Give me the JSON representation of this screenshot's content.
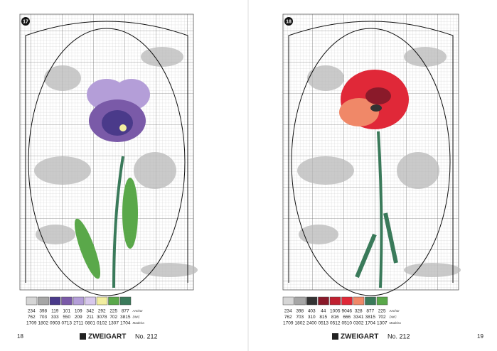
{
  "pages": [
    {
      "chart_number": "17",
      "page_number": "18",
      "brand": "ZWEIGART",
      "issue": "No. 212",
      "key": {
        "labels": [
          "Anchor",
          "DMC",
          "Madeira"
        ],
        "columns": [
          {
            "color": "#d6d6d6",
            "anchor": "234",
            "dmc": "762",
            "madeira": "1709"
          },
          {
            "color": "#a6a6a6",
            "anchor": "398",
            "dmc": "703",
            "madeira": "1802"
          },
          {
            "color": "#4a3a8a",
            "anchor": "119",
            "dmc": "333",
            "madeira": "0903"
          },
          {
            "color": "#7a5aa8",
            "anchor": "101",
            "dmc": "550",
            "madeira": "0713"
          },
          {
            "color": "#b49ed8",
            "anchor": "109",
            "dmc": "209",
            "madeira": "2711"
          },
          {
            "color": "#d8c8ec",
            "anchor": "342",
            "dmc": "211",
            "madeira": "0801"
          },
          {
            "color": "#f2eea0",
            "anchor": "292",
            "dmc": "3078",
            "madeira": "0102"
          },
          {
            "color": "#5aa84a",
            "anchor": "225",
            "dmc": "702",
            "madeira": "1307"
          },
          {
            "color": "#3a7a5a",
            "anchor": "877",
            "dmc": "3815",
            "madeira": "1704"
          }
        ]
      }
    },
    {
      "chart_number": "18",
      "page_number": "19",
      "brand": "ZWEIGART",
      "issue": "No. 212",
      "key": {
        "labels": [
          "Anchor",
          "DMC",
          "Madeira"
        ],
        "columns": [
          {
            "color": "#d6d6d6",
            "anchor": "234",
            "dmc": "762",
            "madeira": "1709"
          },
          {
            "color": "#a6a6a6",
            "anchor": "398",
            "dmc": "703",
            "madeira": "1802"
          },
          {
            "color": "#333333",
            "anchor": "403",
            "dmc": "310",
            "madeira": "2400"
          },
          {
            "color": "#8a1a2a",
            "anchor": "44",
            "dmc": "815",
            "madeira": "0513"
          },
          {
            "color": "#c02030",
            "anchor": "1005",
            "dmc": "816",
            "madeira": "0512"
          },
          {
            "color": "#e02838",
            "anchor": "9046",
            "dmc": "666",
            "madeira": "0510"
          },
          {
            "color": "#f08868",
            "anchor": "328",
            "dmc": "3341",
            "madeira": "0302"
          },
          {
            "color": "#3a7a5a",
            "anchor": "877",
            "dmc": "3815",
            "madeira": "1704"
          },
          {
            "color": "#5aa84a",
            "anchor": "225",
            "dmc": "702",
            "madeira": "1307"
          }
        ]
      }
    }
  ]
}
